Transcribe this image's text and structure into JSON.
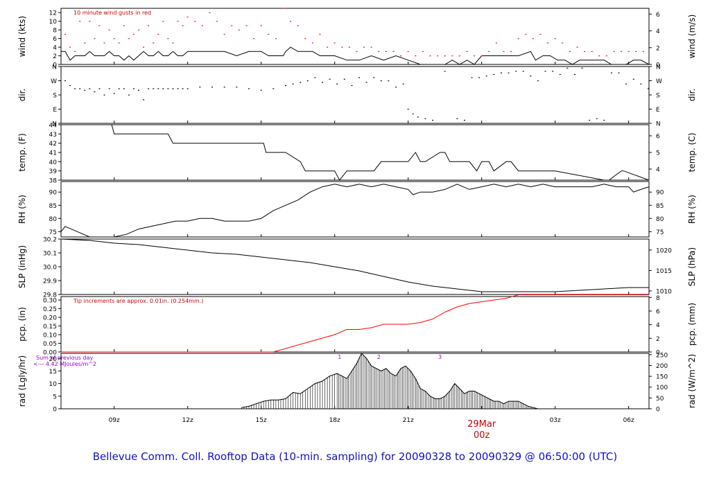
{
  "title": "Bellevue Comm. Coll. Rooftop Data (10-min. sampling) for 20090328  to  20090329 @ 06:50:00  (UTC)",
  "x_ticks": [
    "09z",
    "12z",
    "15z",
    "18z",
    "21z",
    "00z",
    "03z",
    "06z"
  ],
  "date_marker": {
    "day": "29Mar",
    "hour": "00z"
  },
  "chart_data": [
    {
      "type": "line",
      "id": "wind",
      "ylabel": "wind (kts)",
      "ylabel_right": "wind (m/s)",
      "ylim": [
        0,
        13
      ],
      "yticks": [
        "0",
        "2",
        "4",
        "6",
        "8",
        "10",
        "12"
      ],
      "right_ticks": [
        "0",
        "2",
        "4",
        "6"
      ],
      "annotation": "10  minute wind gusts in red",
      "series": [
        {
          "name": "",
          "x": [
            6.83,
            7.0,
            7.2,
            7.4,
            7.6,
            7.8,
            8.0,
            8.2,
            8.4,
            8.6,
            8.8,
            9.0,
            9.2,
            9.4,
            9.6,
            9.8,
            10.0,
            10.2,
            10.4,
            10.6,
            10.8,
            11.0,
            11.2,
            11.4,
            11.6,
            11.8,
            12.0,
            12.5,
            13.0,
            13.5,
            14.0,
            14.5,
            15.0,
            15.3,
            15.6,
            15.9,
            16.0,
            16.2,
            16.5,
            16.8,
            17.1,
            17.4,
            17.7,
            18.0,
            18.5,
            19.0,
            19.5,
            20.0,
            20.5,
            21.0,
            21.5,
            22.0,
            22.5,
            22.8,
            23.1,
            23.4,
            23.7,
            24.0,
            24.5,
            25.0,
            25.5,
            26.0,
            26.2,
            26.5,
            26.8,
            27.1,
            27.4,
            27.7,
            28.0,
            28.5,
            29.0,
            29.3,
            29.6,
            29.9,
            30.2,
            30.5,
            30.83
          ],
          "values": [
            3,
            3,
            1,
            2,
            2,
            2,
            3,
            2,
            2,
            2,
            3,
            2,
            2,
            1,
            2,
            1,
            2,
            3,
            2,
            2,
            3,
            2,
            2,
            3,
            2,
            2,
            3,
            3,
            3,
            3,
            2,
            3,
            3,
            2,
            2,
            2,
            3,
            4,
            3,
            3,
            3,
            2,
            2,
            2,
            1,
            1,
            2,
            1,
            2,
            1,
            0,
            0,
            0,
            1,
            0,
            1,
            0,
            2,
            2,
            2,
            2,
            3,
            1,
            2,
            2,
            1,
            1,
            0,
            1,
            1,
            1,
            0,
            0,
            0,
            1,
            1,
            0
          ]
        },
        {
          "name": "",
          "type": "scatter",
          "color": "#ff0000",
          "x": [
            7.0,
            7.2,
            7.4,
            7.6,
            7.8,
            8.0,
            8.2,
            8.4,
            8.6,
            8.8,
            9.0,
            9.2,
            9.4,
            9.6,
            9.8,
            10.0,
            10.2,
            10.4,
            10.6,
            10.8,
            11.0,
            11.2,
            11.4,
            11.6,
            11.8,
            12.0,
            12.3,
            12.6,
            12.9,
            13.2,
            13.5,
            13.8,
            14.1,
            14.4,
            14.7,
            15.0,
            15.3,
            15.6,
            15.9,
            16.2,
            16.5,
            16.8,
            17.1,
            17.4,
            17.7,
            18.0,
            18.3,
            18.6,
            18.9,
            19.2,
            19.5,
            19.8,
            20.1,
            20.4,
            20.7,
            21.0,
            21.3,
            21.6,
            21.9,
            22.2,
            22.5,
            22.8,
            23.1,
            23.4,
            23.7,
            24.0,
            24.3,
            24.6,
            24.9,
            25.2,
            25.5,
            25.8,
            26.1,
            26.4,
            26.7,
            27.0,
            27.3,
            27.6,
            27.9,
            28.2,
            28.5,
            28.8,
            29.1,
            29.4,
            29.7,
            30.0,
            30.3,
            30.6
          ],
          "values": [
            7,
            4,
            3,
            10,
            5,
            10,
            6,
            9,
            5,
            8,
            6,
            5,
            9,
            6,
            7,
            8,
            4,
            9,
            5,
            7,
            10,
            6,
            5,
            10,
            9,
            11,
            10,
            9,
            12,
            10,
            7,
            9,
            8,
            9,
            6,
            9,
            7,
            6,
            13,
            10,
            9,
            6,
            5,
            7,
            4,
            5,
            4,
            4,
            3,
            4,
            4,
            3,
            3,
            3,
            2,
            3,
            2,
            3,
            2,
            2,
            2,
            2,
            2,
            3,
            2,
            2,
            3,
            5,
            3,
            3,
            6,
            7,
            6,
            7,
            5,
            6,
            5,
            3,
            4,
            3,
            3,
            2,
            2,
            3,
            3,
            3,
            3,
            3
          ]
        }
      ]
    },
    {
      "type": "scatter",
      "id": "dir",
      "ylabel": "dir.",
      "ylabel_right": "dir.",
      "ylim": [
        0,
        360
      ],
      "yticks": [
        "N",
        "E",
        "S",
        "W",
        "N"
      ],
      "right_ticks": [
        "N",
        "E",
        "S",
        "W",
        "N"
      ],
      "series": [
        {
          "name": "",
          "x": [
            7.0,
            7.2,
            7.4,
            7.6,
            7.8,
            8.0,
            8.2,
            8.4,
            8.6,
            8.8,
            9.0,
            9.2,
            9.4,
            9.6,
            9.8,
            10.0,
            10.2,
            10.4,
            10.6,
            10.8,
            11.0,
            11.2,
            11.4,
            11.6,
            11.8,
            12.0,
            12.5,
            13.0,
            13.5,
            14.0,
            14.5,
            15.0,
            15.5,
            16.0,
            16.3,
            16.6,
            16.9,
            17.2,
            17.5,
            17.8,
            18.1,
            18.4,
            18.7,
            19.0,
            19.3,
            19.6,
            19.9,
            20.2,
            20.5,
            20.8,
            21.0,
            21.2,
            21.4,
            21.7,
            22.0,
            22.5,
            23.0,
            23.3,
            23.6,
            23.9,
            24.2,
            24.5,
            24.8,
            25.1,
            25.4,
            25.7,
            26.0,
            26.3,
            26.6,
            26.9,
            27.2,
            27.5,
            27.8,
            28.1,
            28.4,
            28.7,
            29.0,
            29.3,
            29.6,
            29.9,
            30.2,
            30.5,
            30.8
          ],
          "values": [
            270,
            240,
            220,
            220,
            210,
            220,
            200,
            220,
            180,
            220,
            190,
            220,
            220,
            180,
            220,
            210,
            150,
            220,
            220,
            220,
            220,
            220,
            220,
            220,
            220,
            220,
            230,
            230,
            230,
            230,
            220,
            210,
            220,
            240,
            250,
            260,
            270,
            290,
            260,
            280,
            250,
            280,
            240,
            290,
            260,
            290,
            270,
            270,
            230,
            250,
            90,
            60,
            40,
            30,
            20,
            330,
            30,
            20,
            290,
            290,
            300,
            310,
            320,
            320,
            330,
            330,
            300,
            270,
            330,
            330,
            310,
            350,
            310,
            350,
            20,
            30,
            20,
            320,
            320,
            250,
            280,
            250,
            220
          ]
        }
      ]
    },
    {
      "type": "line",
      "id": "temp",
      "ylabel": "temp. (F)",
      "ylabel_right": "temp. (C)",
      "ylim": [
        38,
        44
      ],
      "yticks": [
        "38",
        "39",
        "40",
        "41",
        "42",
        "43",
        "44"
      ],
      "right_ticks": [
        "4",
        "5",
        "6"
      ],
      "series": [
        {
          "name": "",
          "x": [
            6.83,
            8.9,
            9.0,
            11.2,
            11.4,
            14.0,
            14.2,
            15.1,
            15.2,
            15.5,
            16.0,
            16.6,
            16.8,
            18.0,
            18.2,
            18.5,
            19.6,
            19.9,
            20.0,
            21.0,
            21.3,
            21.5,
            21.7,
            22.3,
            22.5,
            22.7,
            23.5,
            23.8,
            24.0,
            24.3,
            24.5,
            25.0,
            25.2,
            25.5,
            26.0,
            26.5,
            27.0,
            29.0,
            29.2,
            29.7,
            29.8,
            30.83
          ],
          "values": [
            44,
            44,
            43,
            43,
            42,
            42,
            42,
            42,
            41,
            41,
            41,
            40,
            39,
            39,
            38,
            39,
            39,
            40,
            40,
            40,
            41,
            40,
            40,
            41,
            41,
            40,
            40,
            39,
            40,
            40,
            39,
            40,
            40,
            39,
            39,
            39,
            39,
            38,
            38,
            39,
            39,
            38
          ]
        }
      ]
    },
    {
      "type": "line",
      "id": "rh",
      "ylabel": "RH (%)",
      "ylabel_right": "RH (%)",
      "ylim": [
        73,
        94
      ],
      "yticks": [
        "75",
        "80",
        "85",
        "90"
      ],
      "right_ticks": [
        "75",
        "80",
        "85",
        "90"
      ],
      "series": [
        {
          "name": "",
          "x": [
            6.83,
            7.0,
            7.5,
            8.0,
            9.0,
            9.5,
            10.0,
            10.5,
            11.0,
            11.5,
            12.0,
            12.5,
            13.0,
            13.5,
            14.0,
            14.5,
            15.0,
            15.5,
            16.0,
            16.5,
            17.0,
            17.5,
            18.0,
            18.5,
            19.0,
            19.5,
            20.0,
            20.5,
            21.0,
            21.2,
            21.5,
            22.0,
            22.5,
            23.0,
            23.5,
            24.0,
            24.5,
            25.0,
            25.5,
            26.0,
            26.5,
            27.0,
            27.5,
            28.0,
            28.5,
            29.0,
            29.5,
            30.0,
            30.2,
            30.5,
            30.83
          ],
          "values": [
            75,
            77,
            75,
            73,
            73,
            74,
            76,
            77,
            78,
            79,
            79,
            80,
            80,
            79,
            79,
            79,
            80,
            83,
            85,
            87,
            90,
            92,
            93,
            92,
            93,
            92,
            93,
            92,
            91,
            89,
            90,
            90,
            91,
            93,
            91,
            92,
            93,
            92,
            93,
            92,
            93,
            92,
            92,
            92,
            92,
            93,
            92,
            92,
            90,
            91,
            92
          ]
        }
      ]
    },
    {
      "type": "line",
      "id": "slp",
      "ylabel": "SLP (inHg)",
      "ylabel_right": "SLP (hPa)",
      "ylim": [
        29.8,
        30.2
      ],
      "yticks": [
        "29.8",
        "29.9",
        "30.0",
        "30.1",
        "30.2"
      ],
      "right_ticks": [
        "1010",
        "1015",
        "1020"
      ],
      "series": [
        {
          "name": "",
          "x": [
            6.83,
            8.0,
            9.0,
            10.0,
            11.0,
            12.0,
            13.0,
            14.0,
            15.0,
            16.0,
            17.0,
            18.0,
            19.0,
            20.0,
            21.0,
            22.0,
            23.0,
            24.0,
            25.0,
            26.0,
            27.0,
            28.0,
            29.0,
            30.0,
            30.83
          ],
          "values": [
            30.2,
            30.19,
            30.17,
            30.16,
            30.14,
            30.12,
            30.1,
            30.09,
            30.07,
            30.05,
            30.03,
            30.0,
            29.97,
            29.93,
            29.89,
            29.86,
            29.84,
            29.82,
            29.82,
            29.82,
            29.82,
            29.83,
            29.84,
            29.85,
            29.85
          ]
        }
      ]
    },
    {
      "type": "line",
      "id": "pcp",
      "ylabel": "pcp. (in)",
      "ylabel_right": "pcp. (mm)",
      "ylim": [
        0,
        0.32
      ],
      "yticks": [
        "0.00",
        "0.05",
        "0.10",
        "0.15",
        "0.20",
        "0.25",
        "0.30"
      ],
      "right_ticks": [
        "0",
        "2",
        "4",
        "6",
        "8"
      ],
      "annotation": "Tip increments are approx. 0.01in. (0.254mm.)",
      "series": [
        {
          "name": "",
          "color": "#ff0000",
          "x": [
            6.83,
            15.5,
            16.0,
            17.0,
            18.0,
            18.5,
            19.0,
            19.5,
            20.0,
            20.5,
            21.0,
            21.5,
            22.0,
            22.5,
            23.0,
            23.5,
            24.0,
            24.5,
            25.0,
            25.5,
            26.0,
            30.83
          ],
          "values": [
            0,
            0,
            0.02,
            0.06,
            0.1,
            0.13,
            0.13,
            0.14,
            0.16,
            0.16,
            0.16,
            0.17,
            0.19,
            0.23,
            0.26,
            0.28,
            0.29,
            0.3,
            0.31,
            0.33,
            0.33,
            0.33
          ]
        }
      ]
    },
    {
      "type": "area",
      "id": "rad",
      "ylabel": "rad (Lgly/hr)",
      "ylabel_right": "rad (W/m^2)",
      "ylim": [
        0,
        22
      ],
      "yticks": [
        "0",
        "5",
        "10",
        "15",
        "20"
      ],
      "right_ticks": [
        "0",
        "50",
        "100",
        "150",
        "200",
        "250"
      ],
      "annotation": "Sum of previous day",
      "annotation2": "<--- 4.42 MJoules/m^2",
      "markers": [
        {
          "x": 18.2,
          "label": "1"
        },
        {
          "x": 19.8,
          "label": "2"
        },
        {
          "x": 22.3,
          "label": "3"
        }
      ],
      "series": [
        {
          "name": "",
          "x": [
            14.2,
            14.5,
            14.8,
            15.1,
            15.4,
            15.7,
            16.0,
            16.3,
            16.6,
            16.9,
            17.2,
            17.5,
            17.8,
            18.1,
            18.3,
            18.5,
            18.7,
            18.9,
            19.1,
            19.3,
            19.5,
            19.7,
            19.9,
            20.1,
            20.3,
            20.5,
            20.7,
            20.9,
            21.1,
            21.3,
            21.5,
            21.7,
            21.9,
            22.1,
            22.3,
            22.5,
            22.7,
            22.9,
            23.1,
            23.3,
            23.5,
            23.7,
            23.9,
            24.1,
            24.3,
            24.5,
            24.7,
            24.9,
            25.1,
            25.3,
            25.5,
            25.7,
            25.9,
            26.1,
            26.3
          ],
          "values": [
            0.5,
            1,
            2,
            3,
            3.5,
            3.5,
            4,
            6.5,
            6,
            8,
            10,
            11,
            13,
            14,
            13,
            12,
            15,
            18,
            22,
            20,
            17,
            16,
            15,
            16,
            14,
            13,
            16,
            17,
            15,
            12,
            8,
            7,
            5,
            4,
            4,
            5,
            7,
            10,
            8,
            6,
            7,
            7,
            6,
            5,
            4,
            3,
            3,
            2,
            3,
            3,
            3,
            2,
            1,
            0.5,
            0
          ]
        }
      ]
    }
  ]
}
